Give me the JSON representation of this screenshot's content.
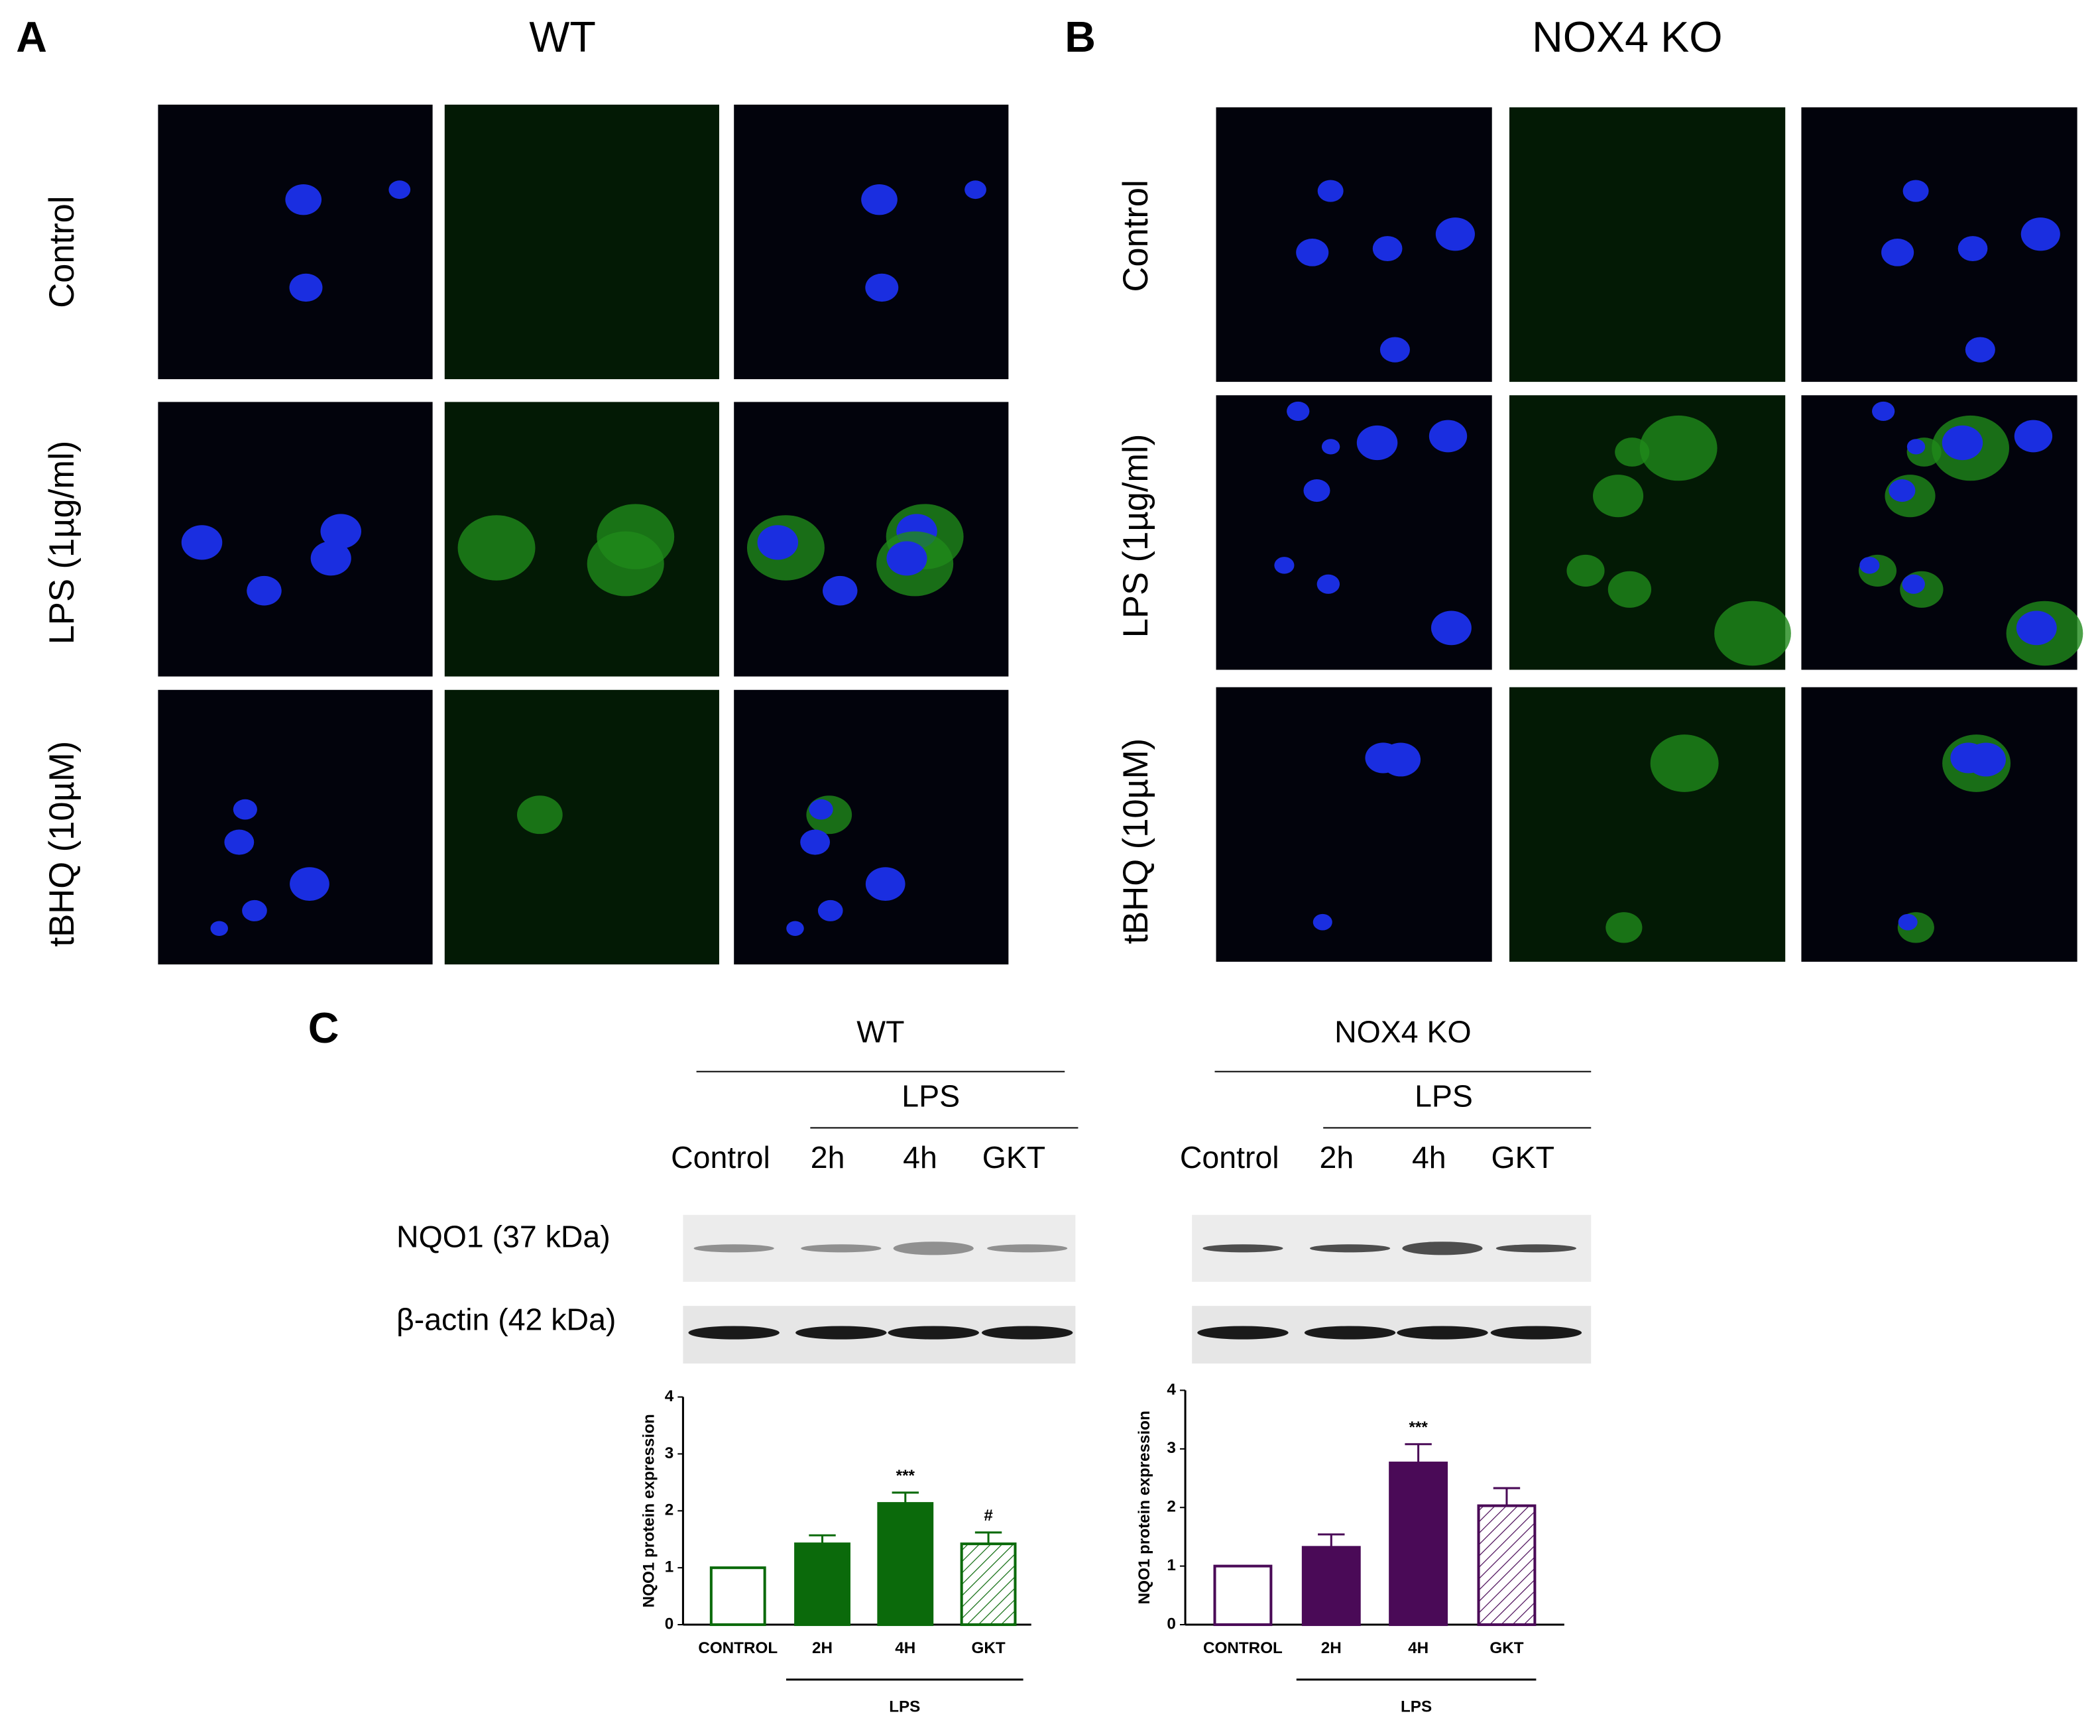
{
  "panel_a": {
    "letter": "A",
    "title": "WT",
    "rows": [
      "Control",
      "LPS (1µg/ml)",
      "tBHQ (10µM)"
    ]
  },
  "panel_b": {
    "letter": "B",
    "title": "NOX4 KO",
    "rows": [
      "Control",
      "LPS (1µg/ml)",
      "tBHQ (10µM)"
    ]
  },
  "panel_c": {
    "letter": "C",
    "blots": [
      {
        "title": "WT",
        "group": "LPS",
        "lanes": [
          "Control",
          "2h",
          "4h",
          "GKT"
        ]
      },
      {
        "title": "NOX4 KO",
        "group": "LPS",
        "lanes": [
          "Control",
          "2h",
          "4h",
          "GKT"
        ]
      }
    ],
    "proteins": [
      "NQO1 (37 kDa)",
      "β-actin (42 kDa)"
    ]
  },
  "chart_data": [
    {
      "type": "bar",
      "y_label": "NQO1 protein expression",
      "categories": [
        "CONTROL",
        "2H",
        "4H",
        "GKT"
      ],
      "values": [
        1,
        1.42,
        2.13,
        1.42
      ],
      "errors": [
        0,
        0.15,
        0.19,
        0.2
      ],
      "annotations": [
        null,
        null,
        "***",
        "#"
      ],
      "bar_styles": [
        "hollow",
        "solid",
        "solid",
        "hatched"
      ],
      "color": "#0b6a0b",
      "group_label": "LPS",
      "ylim": [
        0,
        4
      ],
      "yticks": [
        0,
        1,
        2,
        3,
        4
      ]
    },
    {
      "type": "bar",
      "y_label": "NQO1 protein expression",
      "categories": [
        "CONTROL",
        "2H",
        "4H",
        "GKT"
      ],
      "values": [
        1,
        1.32,
        2.76,
        2.03
      ],
      "errors": [
        0,
        0.22,
        0.32,
        0.3
      ],
      "annotations": [
        null,
        null,
        "***",
        null
      ],
      "bar_styles": [
        "hollow",
        "solid",
        "solid",
        "hatched"
      ],
      "color": "#4a0a57",
      "group_label": "LPS",
      "ylim": [
        0,
        4
      ],
      "yticks": [
        0,
        1,
        2,
        3,
        4
      ]
    }
  ]
}
